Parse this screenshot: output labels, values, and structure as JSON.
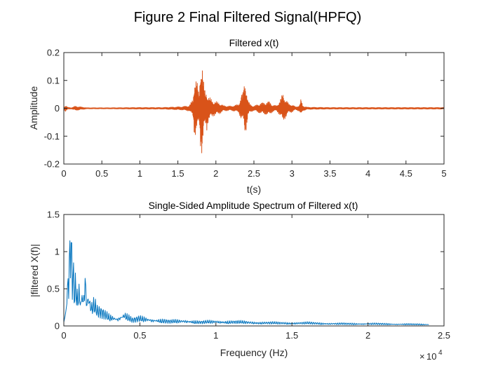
{
  "figure": {
    "suptitle": "Figure 2 Final Filtered Signal(HPFQ)"
  },
  "chart_data": [
    {
      "type": "line",
      "title": "Filtered x(t)",
      "xlabel": "t(s)",
      "ylabel": "Amplitude",
      "xlim": [
        0,
        5
      ],
      "ylim": [
        -0.2,
        0.2
      ],
      "xticks": [
        0,
        0.5,
        1,
        1.5,
        2,
        2.5,
        3,
        3.5,
        4,
        4.5,
        5
      ],
      "xtick_labels": [
        "0",
        "0.5",
        "1",
        "1.5",
        "2",
        "2.5",
        "3",
        "3.5",
        "4",
        "4.5",
        "5"
      ],
      "yticks": [
        -0.2,
        -0.1,
        0,
        0.1,
        0.2
      ],
      "ytick_labels": [
        "-0.2",
        "-0.1",
        "0",
        "0.1",
        "0.2"
      ],
      "grid": false,
      "color": "#D95319",
      "series": [
        {
          "x": [
            0,
            0.02,
            0.05,
            0.1,
            0.15,
            0.3,
            0.6,
            1.0,
            1.3,
            1.55,
            1.65,
            1.7,
            1.72,
            1.75,
            1.78,
            1.8,
            1.82,
            1.84,
            1.86,
            1.88,
            1.9,
            1.95,
            2.0,
            2.05,
            2.1,
            2.2,
            2.3,
            2.33,
            2.36,
            2.38,
            2.4,
            2.42,
            2.45,
            2.5,
            2.55,
            2.6,
            2.7,
            2.75,
            2.8,
            2.85,
            2.88,
            2.9,
            2.93,
            2.96,
            3.0,
            3.05,
            3.1,
            3.12,
            3.14,
            3.2,
            3.5,
            4.0,
            4.5,
            5.0
          ],
          "upper": [
            0.004,
            0.012,
            0.004,
            0.002,
            0.008,
            0.002,
            0.002,
            0.003,
            0.003,
            0.006,
            0.01,
            0.035,
            0.13,
            0.1,
            0.05,
            0.2,
            0.17,
            0.09,
            0.06,
            0.07,
            0.045,
            0.03,
            0.025,
            0.02,
            0.01,
            0.008,
            0.015,
            0.05,
            0.06,
            0.11,
            0.09,
            0.03,
            0.015,
            0.008,
            0.015,
            0.02,
            0.025,
            0.012,
            0.01,
            0.035,
            0.055,
            0.045,
            0.03,
            0.015,
            0.015,
            0.005,
            0.012,
            0.035,
            0.01,
            0.004,
            0.003,
            0.003,
            0.003,
            0.003
          ],
          "lower": [
            -0.004,
            -0.012,
            -0.004,
            -0.002,
            -0.008,
            -0.002,
            -0.002,
            -0.003,
            -0.003,
            -0.006,
            -0.01,
            -0.03,
            -0.11,
            -0.09,
            -0.05,
            -0.15,
            -0.18,
            -0.1,
            -0.06,
            -0.08,
            -0.05,
            -0.03,
            -0.025,
            -0.02,
            -0.01,
            -0.008,
            -0.015,
            -0.04,
            -0.05,
            -0.09,
            -0.08,
            -0.03,
            -0.015,
            -0.008,
            -0.015,
            -0.02,
            -0.025,
            -0.012,
            -0.01,
            -0.03,
            -0.05,
            -0.04,
            -0.03,
            -0.015,
            -0.015,
            -0.005,
            -0.012,
            -0.03,
            -0.01,
            -0.004,
            -0.003,
            -0.003,
            -0.003,
            -0.003
          ]
        }
      ]
    },
    {
      "type": "line",
      "title": "Single-Sided Amplitude Spectrum of Filtered x(t)",
      "xlabel": "Frequency (Hz)",
      "ylabel": "|filtered X(f)|",
      "xlim": [
        0,
        25000
      ],
      "ylim": [
        0,
        1.5
      ],
      "xticks": [
        0,
        5000,
        10000,
        15000,
        20000,
        25000
      ],
      "xtick_labels": [
        "0",
        "0.5",
        "1",
        "1.5",
        "2",
        "2.5"
      ],
      "x_exponent_base": "10",
      "x_exponent": "4",
      "yticks": [
        0,
        0.5,
        1,
        1.5
      ],
      "ytick_labels": [
        "0",
        "0.5",
        "1",
        "1.5"
      ],
      "grid": false,
      "color": "#0072BD",
      "series": [
        {
          "x": [
            0,
            100,
            200,
            300,
            400,
            450,
            500,
            550,
            600,
            700,
            800,
            900,
            1000,
            1100,
            1200,
            1300,
            1400,
            1500,
            1600,
            1800,
            2000,
            2200,
            2500,
            3000,
            3500,
            4000,
            4500,
            5000,
            6000,
            7000,
            8000,
            9000,
            10000,
            12000,
            14000,
            16000,
            18000,
            20000,
            22000,
            24000
          ],
          "y": [
            0.05,
            0.15,
            0.3,
            0.6,
            0.9,
            1.22,
            1.0,
            0.6,
            0.75,
            0.45,
            0.6,
            0.35,
            0.5,
            0.3,
            0.45,
            0.35,
            0.72,
            0.3,
            0.4,
            0.25,
            0.3,
            0.2,
            0.18,
            0.12,
            0.1,
            0.15,
            0.08,
            0.1,
            0.08,
            0.06,
            0.07,
            0.05,
            0.06,
            0.05,
            0.04,
            0.04,
            0.03,
            0.03,
            0.025,
            0.02
          ]
        }
      ]
    }
  ]
}
